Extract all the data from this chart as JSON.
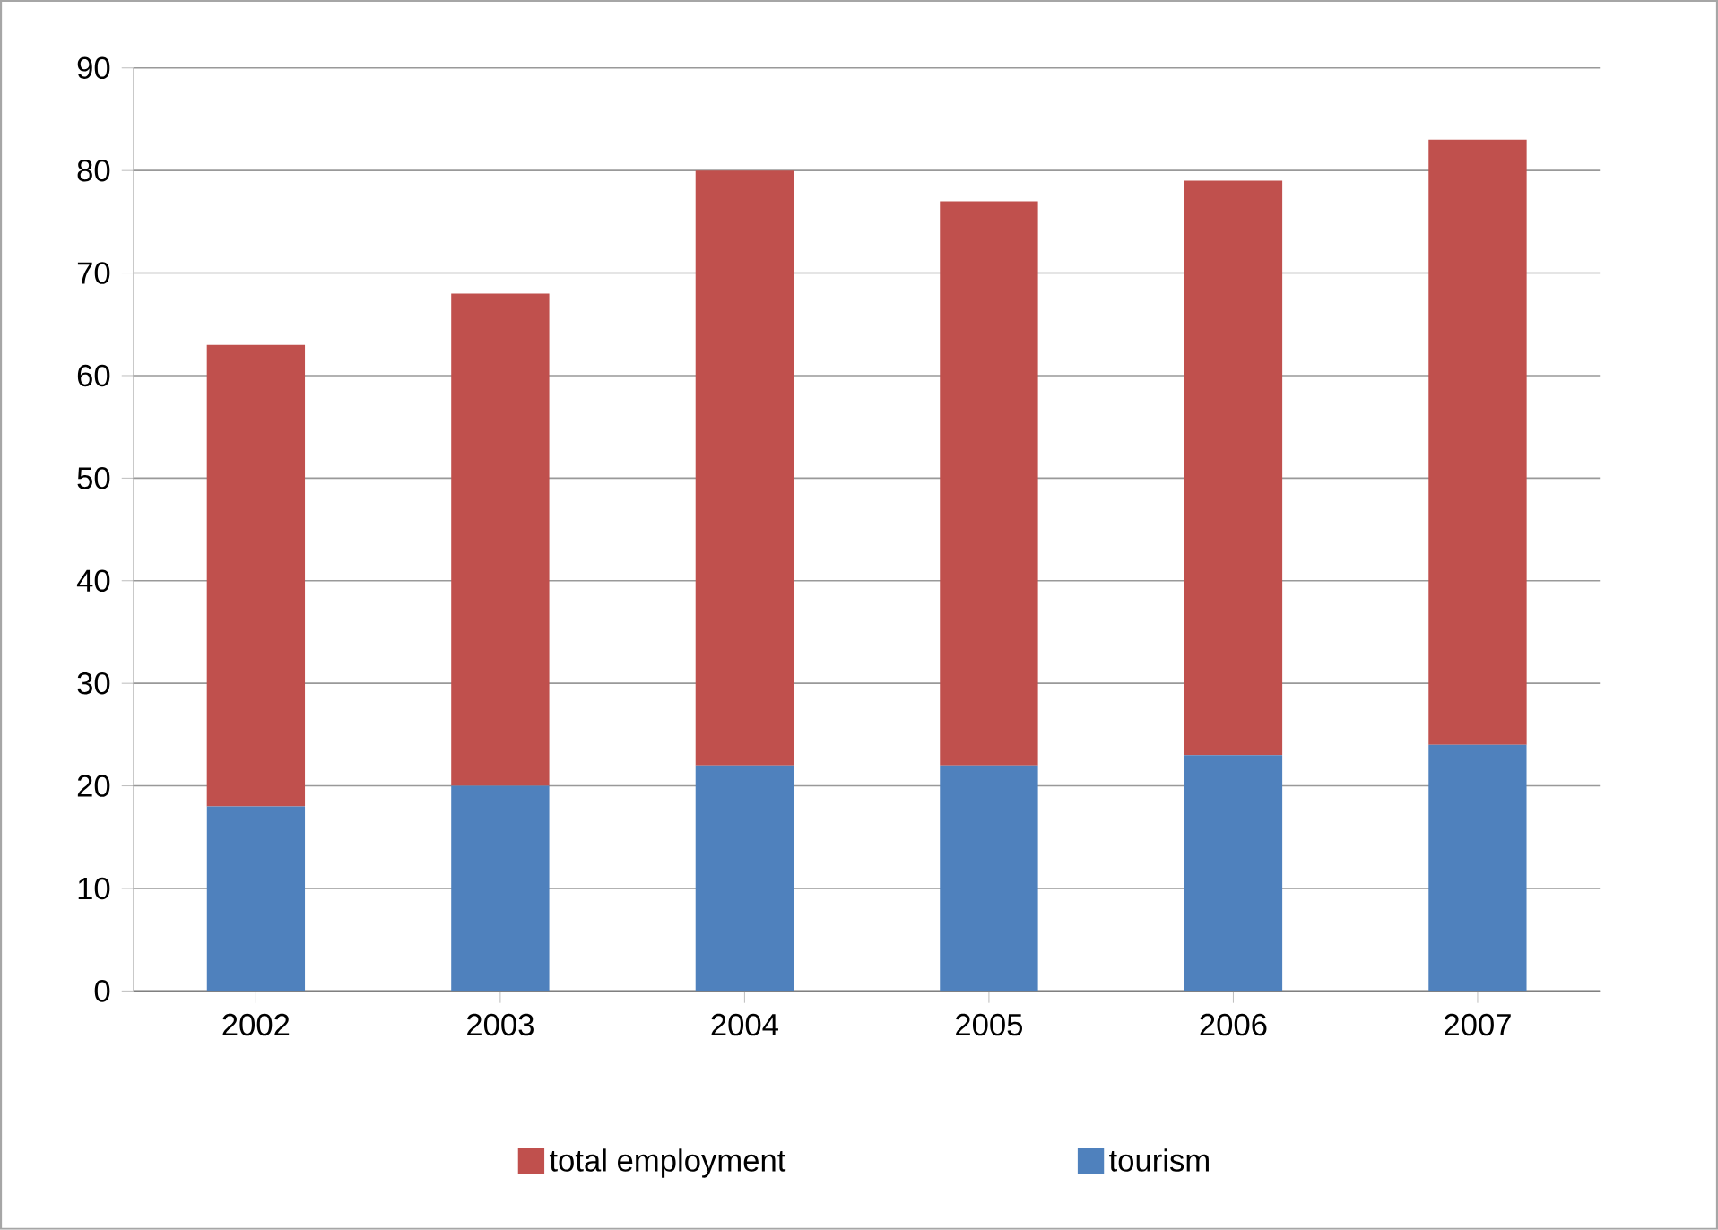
{
  "chart_data": {
    "type": "bar",
    "stacked": true,
    "categories": [
      "2002",
      "2003",
      "2004",
      "2005",
      "2006",
      "2007"
    ],
    "series": [
      {
        "name": "tourism",
        "color": "#4f81bd",
        "values": [
          18,
          20,
          22,
          22,
          23,
          24
        ]
      },
      {
        "name": "total employment",
        "color": "#c0504d",
        "values": [
          45,
          48,
          58,
          55,
          56,
          59
        ]
      }
    ],
    "ylim": [
      0,
      90
    ],
    "yticks": [
      0,
      10,
      20,
      30,
      40,
      50,
      60,
      70,
      80,
      90
    ],
    "grid": "y",
    "legend": "bottom"
  }
}
